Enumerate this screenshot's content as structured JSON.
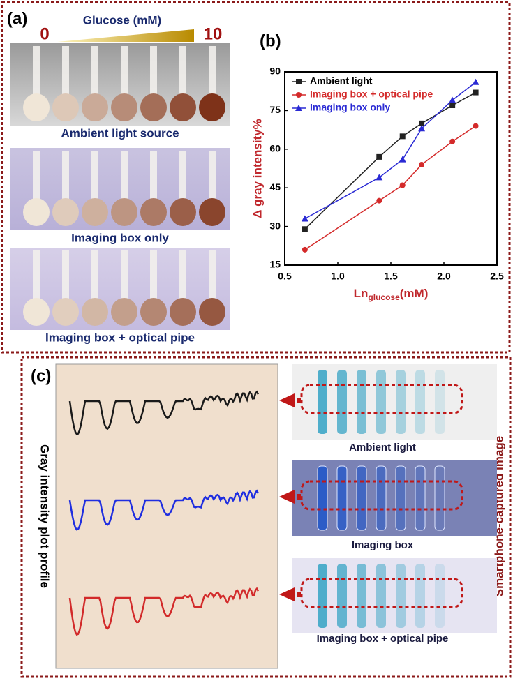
{
  "panel_a": {
    "label": "(a)",
    "scale_title": "Glucose (mM)",
    "scale_min": "0",
    "scale_max": "10",
    "captions": [
      "Ambient light source",
      "Imaging box only",
      "Imaging box + optical pipe"
    ]
  },
  "chart_data": {
    "type": "line",
    "label": "(b)",
    "y_label": "Δ gray intensity%",
    "x_label": {
      "main": "Ln",
      "sub": "glucose",
      "unit": "(mM)"
    },
    "x": [
      0.69,
      1.39,
      1.61,
      1.79,
      2.08,
      2.3
    ],
    "series": [
      {
        "name": "Ambient light",
        "color": "#222222",
        "marker": "square",
        "values": [
          29,
          57,
          65,
          70,
          77,
          82
        ]
      },
      {
        "name": "Imaging box + optical pipe",
        "color": "#d42a2a",
        "marker": "circle",
        "values": [
          21,
          40,
          46,
          54,
          63,
          69
        ]
      },
      {
        "name": "Imaging box only",
        "color": "#2a2ad4",
        "marker": "triangle",
        "values": [
          33,
          49,
          56,
          68,
          79,
          86
        ]
      }
    ],
    "xlim": [
      0.5,
      2.5
    ],
    "xticks": [
      0.5,
      {
        "value": 1,
        "label": "1.0"
      },
      1.5,
      {
        "value": 2,
        "label": "2.0"
      },
      2.5
    ],
    "ylim": [
      15,
      90
    ],
    "yticks": [
      15,
      30,
      45,
      60,
      75,
      90
    ],
    "legend": "upper-left"
  },
  "panel_c": {
    "label": "(c)",
    "left_title": "Gray intensity plot profile",
    "right_title": "Smartphone-captured image",
    "captions": [
      "Ambient light",
      "Imaging box",
      "Imaging box + optical pipe"
    ]
  }
}
